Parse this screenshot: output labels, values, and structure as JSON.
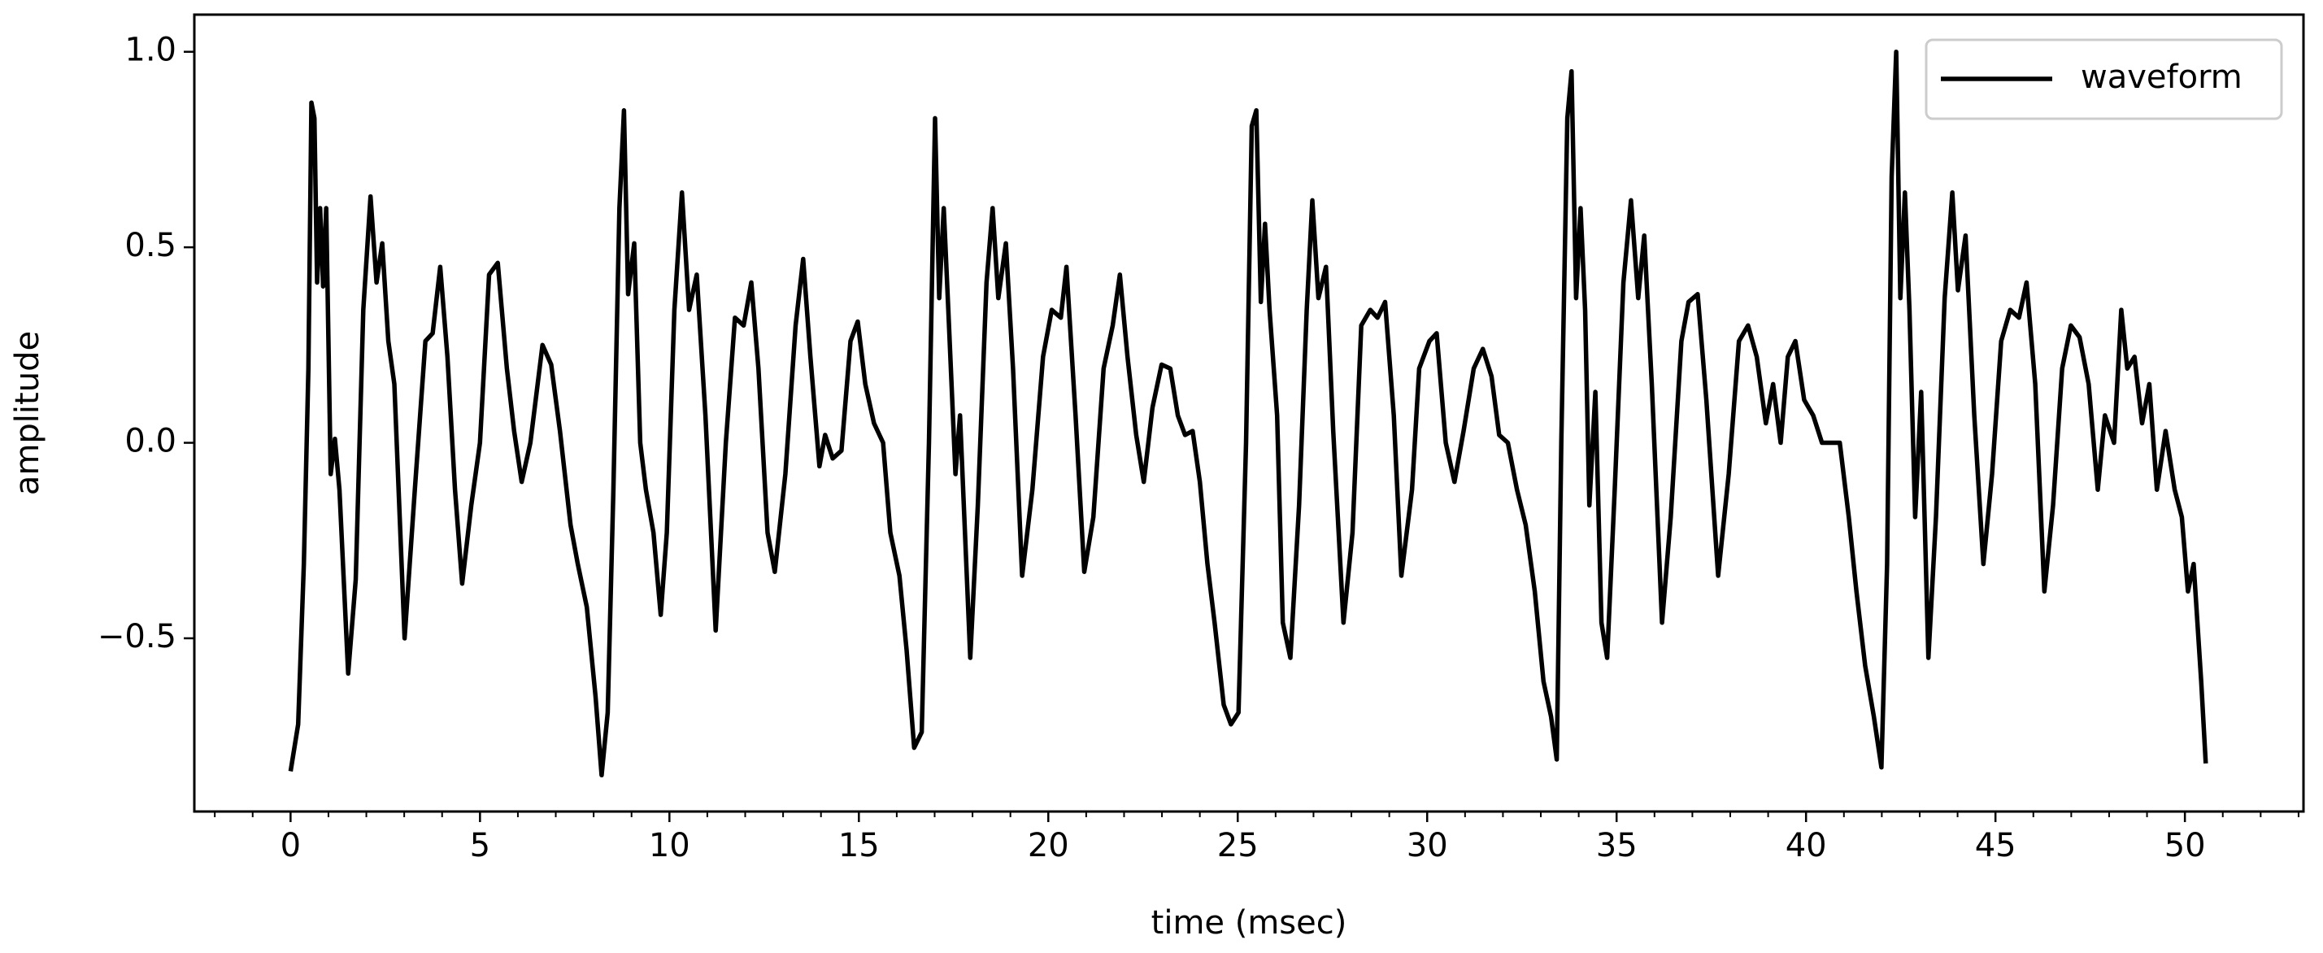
{
  "chart_data": {
    "type": "line",
    "xlabel": "time (msec)",
    "ylabel": "amplitude",
    "xlim": [
      -2.54,
      53.13
    ],
    "ylim": [
      -0.943,
      1.095
    ],
    "xticks": [
      0,
      5,
      10,
      15,
      20,
      25,
      30,
      35,
      40,
      45,
      50
    ],
    "xminorticks": [
      -2,
      -1,
      1,
      2,
      3,
      4,
      6,
      7,
      8,
      9,
      11,
      12,
      13,
      14,
      16,
      17,
      18,
      19,
      21,
      22,
      23,
      24,
      26,
      27,
      28,
      29,
      31,
      32,
      33,
      34,
      36,
      37,
      38,
      39,
      41,
      42,
      43,
      44,
      46,
      47,
      48,
      49,
      51,
      52,
      53
    ],
    "yticks": [
      {
        "value": -0.5,
        "label": "−0.5"
      },
      {
        "value": 0,
        "label": "0.0"
      },
      {
        "value": 0.5,
        "label": "0.5"
      },
      {
        "value": 1,
        "label": "1.0"
      }
    ],
    "legend": "upper right",
    "x": [
      0,
      0.2,
      0.35,
      0.47,
      0.55,
      0.63,
      0.7,
      0.78,
      0.86,
      0.94,
      1.06,
      1.17,
      1.29,
      1.52,
      1.72,
      1.92,
      2.11,
      2.27,
      2.42,
      2.58,
      2.74,
      3.01,
      3.28,
      3.56,
      3.75,
      3.95,
      4.14,
      4.34,
      4.53,
      4.77,
      5.0,
      5.24,
      5.47,
      5.71,
      5.9,
      6.1,
      6.33,
      6.65,
      6.88,
      7.11,
      7.39,
      7.58,
      7.82,
      8.05,
      8.21,
      8.37,
      8.52,
      8.68,
      8.8,
      8.91,
      9.07,
      9.23,
      9.38,
      9.58,
      9.77,
      9.93,
      10.13,
      10.33,
      10.52,
      10.72,
      10.95,
      11.22,
      11.49,
      11.73,
      11.96,
      12.16,
      12.35,
      12.59,
      12.78,
      13.06,
      13.33,
      13.53,
      13.72,
      13.96,
      14.11,
      14.31,
      14.54,
      14.78,
      14.97,
      15.17,
      15.4,
      15.64,
      15.83,
      16.07,
      16.26,
      16.46,
      16.66,
      16.85,
      17.01,
      17.12,
      17.24,
      17.36,
      17.55,
      17.67,
      17.94,
      18.14,
      18.37,
      18.53,
      18.68,
      18.88,
      19.07,
      19.31,
      19.58,
      19.86,
      20.09,
      20.33,
      20.48,
      20.72,
      20.95,
      21.19,
      21.46,
      21.7,
      21.89,
      22.09,
      22.32,
      22.52,
      22.75,
      22.99,
      23.22,
      23.42,
      23.61,
      23.81,
      24.0,
      24.2,
      24.39,
      24.63,
      24.82,
      25.02,
      25.22,
      25.37,
      25.49,
      25.61,
      25.72,
      25.84,
      26.04,
      26.19,
      26.39,
      26.62,
      26.82,
      26.97,
      27.13,
      27.33,
      27.52,
      27.79,
      28.03,
      28.26,
      28.5,
      28.69,
      28.89,
      29.12,
      29.32,
      29.6,
      29.79,
      30.06,
      30.25,
      30.49,
      30.72,
      30.96,
      31.23,
      31.47,
      31.7,
      31.9,
      32.13,
      32.37,
      32.6,
      32.84,
      33.07,
      33.27,
      33.42,
      33.54,
      33.7,
      33.81,
      33.93,
      34.05,
      34.17,
      34.28,
      34.44,
      34.6,
      34.75,
      34.95,
      35.18,
      35.38,
      35.57,
      35.73,
      35.93,
      36.2,
      36.43,
      36.71,
      36.9,
      37.14,
      37.37,
      37.68,
      37.96,
      38.23,
      38.47,
      38.7,
      38.94,
      39.13,
      39.33,
      39.52,
      39.72,
      39.95,
      40.19,
      40.42,
      40.66,
      40.89,
      41.13,
      41.33,
      41.56,
      41.79,
      41.99,
      42.14,
      42.26,
      42.38,
      42.49,
      42.61,
      42.73,
      42.88,
      43.04,
      43.23,
      43.43,
      43.66,
      43.86,
      44.01,
      44.21,
      44.44,
      44.68,
      44.91,
      45.15,
      45.39,
      45.62,
      45.82,
      46.05,
      46.29,
      46.52,
      46.76,
      46.99,
      47.22,
      47.46,
      47.7,
      47.89,
      48.13,
      48.32,
      48.48,
      48.67,
      48.87,
      49.06,
      49.26,
      49.49,
      49.73,
      49.92,
      50.08,
      50.23,
      50.43,
      50.55
    ],
    "series": [
      {
        "name": "waveform",
        "color": "#000000",
        "values": [
          -0.84,
          -0.72,
          -0.31,
          0.19,
          0.87,
          0.83,
          0.41,
          0.6,
          0.4,
          0.6,
          -0.08,
          0.01,
          -0.12,
          -0.59,
          -0.35,
          0.34,
          0.63,
          0.41,
          0.51,
          0.26,
          0.15,
          -0.5,
          -0.12,
          0.26,
          0.28,
          0.45,
          0.22,
          -0.12,
          -0.36,
          -0.16,
          0.0,
          0.43,
          0.46,
          0.19,
          0.03,
          -0.1,
          0.0,
          0.25,
          0.2,
          0.03,
          -0.21,
          -0.31,
          -0.42,
          -0.65,
          -0.85,
          -0.69,
          -0.12,
          0.6,
          0.85,
          0.38,
          0.51,
          0.0,
          -0.12,
          -0.23,
          -0.44,
          -0.23,
          0.34,
          0.64,
          0.34,
          0.43,
          0.07,
          -0.48,
          0.0,
          0.32,
          0.3,
          0.41,
          0.19,
          -0.23,
          -0.33,
          -0.08,
          0.3,
          0.47,
          0.22,
          -0.06,
          0.02,
          -0.04,
          -0.02,
          0.26,
          0.31,
          0.15,
          0.05,
          0.0,
          -0.23,
          -0.34,
          -0.53,
          -0.78,
          -0.74,
          0.0,
          0.83,
          0.37,
          0.6,
          0.34,
          -0.08,
          0.07,
          -0.55,
          -0.16,
          0.41,
          0.6,
          0.37,
          0.51,
          0.19,
          -0.34,
          -0.12,
          0.22,
          0.34,
          0.32,
          0.45,
          0.07,
          -0.33,
          -0.19,
          0.19,
          0.3,
          0.43,
          0.22,
          0.02,
          -0.1,
          0.09,
          0.2,
          0.19,
          0.07,
          0.02,
          0.03,
          -0.1,
          -0.31,
          -0.46,
          -0.67,
          -0.72,
          -0.69,
          0.0,
          0.81,
          0.85,
          0.36,
          0.56,
          0.34,
          0.07,
          -0.46,
          -0.55,
          -0.16,
          0.34,
          0.62,
          0.37,
          0.45,
          0.03,
          -0.46,
          -0.23,
          0.3,
          0.34,
          0.32,
          0.36,
          0.07,
          -0.34,
          -0.12,
          0.19,
          0.26,
          0.28,
          0.0,
          -0.1,
          0.03,
          0.19,
          0.24,
          0.17,
          0.02,
          0.0,
          -0.12,
          -0.21,
          -0.38,
          -0.61,
          -0.7,
          -0.81,
          0.0,
          0.83,
          0.95,
          0.37,
          0.6,
          0.34,
          -0.16,
          0.13,
          -0.46,
          -0.55,
          -0.12,
          0.41,
          0.62,
          0.37,
          0.53,
          0.15,
          -0.46,
          -0.19,
          0.26,
          0.36,
          0.38,
          0.11,
          -0.34,
          -0.08,
          0.26,
          0.3,
          0.22,
          0.05,
          0.15,
          0.0,
          0.22,
          0.26,
          0.11,
          0.07,
          0.0,
          0.0,
          0.0,
          -0.19,
          -0.38,
          -0.57,
          -0.7,
          -0.83,
          -0.31,
          0.68,
          1.0,
          0.37,
          0.64,
          0.34,
          -0.19,
          0.13,
          -0.55,
          -0.19,
          0.37,
          0.64,
          0.39,
          0.53,
          0.07,
          -0.31,
          -0.08,
          0.26,
          0.34,
          0.32,
          0.41,
          0.15,
          -0.38,
          -0.16,
          0.19,
          0.3,
          0.27,
          0.15,
          -0.12,
          0.07,
          0.0,
          0.34,
          0.19,
          0.22,
          0.05,
          0.15,
          -0.12,
          0.03,
          -0.12,
          -0.19,
          -0.38,
          -0.31,
          -0.61,
          -0.82
        ]
      }
    ]
  }
}
